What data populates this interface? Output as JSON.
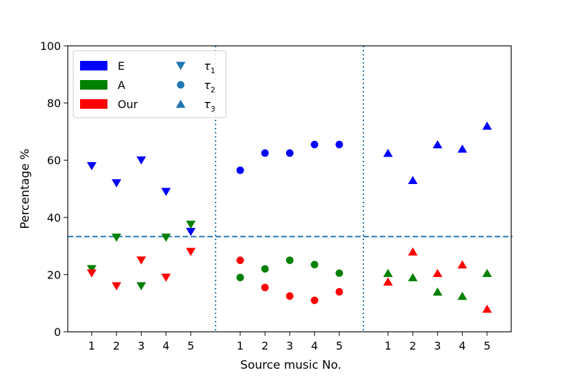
{
  "chart_data": {
    "type": "scatter",
    "xlabel": "Source music No.",
    "ylabel": "Percentage %",
    "ylim": [
      0,
      100
    ],
    "yticks": [
      0,
      20,
      40,
      60,
      80,
      100
    ],
    "groups": [
      {
        "tau": "τ1",
        "marker": "triangle-down",
        "x": [
          1,
          2,
          3,
          4,
          5
        ]
      },
      {
        "tau": "τ2",
        "marker": "circle",
        "x": [
          1,
          2,
          3,
          4,
          5
        ]
      },
      {
        "tau": "τ3",
        "marker": "triangle-up",
        "x": [
          1,
          2,
          3,
          4,
          5
        ]
      }
    ],
    "series": [
      {
        "name": "E",
        "color": "#0000ff",
        "values": [
          [
            58,
            52,
            60,
            49,
            35
          ],
          [
            56.5,
            62.5,
            62.5,
            65.5,
            65.5
          ],
          [
            62.5,
            53,
            65.5,
            64,
            72
          ]
        ]
      },
      {
        "name": "A",
        "color": "#008000",
        "values": [
          [
            22,
            33,
            16,
            33,
            37.5
          ],
          [
            19,
            22,
            25,
            23.5,
            20.5
          ],
          [
            20.5,
            19,
            14,
            12.5,
            20.5
          ]
        ]
      },
      {
        "name": "Our",
        "color": "#ff0000",
        "values": [
          [
            20.5,
            16,
            25,
            19,
            28
          ],
          [
            25,
            15.5,
            12.5,
            11,
            14
          ],
          [
            17.5,
            28,
            20.5,
            23.5,
            8
          ]
        ]
      }
    ],
    "hline": {
      "y": 33.3,
      "style": "dashed",
      "color": "#1f77b4"
    },
    "vlines": {
      "style": "dotted",
      "color": "#1f77b4"
    },
    "legend": {
      "placement": "top-left",
      "colors": [
        {
          "label": "E",
          "color": "#0000ff"
        },
        {
          "label": "A",
          "color": "#008000"
        },
        {
          "label": "Our",
          "color": "#ff0000"
        }
      ],
      "markers": [
        {
          "symbol": "τ",
          "sub": "1",
          "marker": "triangle-down"
        },
        {
          "symbol": "τ",
          "sub": "2",
          "marker": "circle"
        },
        {
          "symbol": "τ",
          "sub": "3",
          "marker": "triangle-up"
        }
      ],
      "marker_color": "#1f77b4"
    },
    "grid": false
  }
}
